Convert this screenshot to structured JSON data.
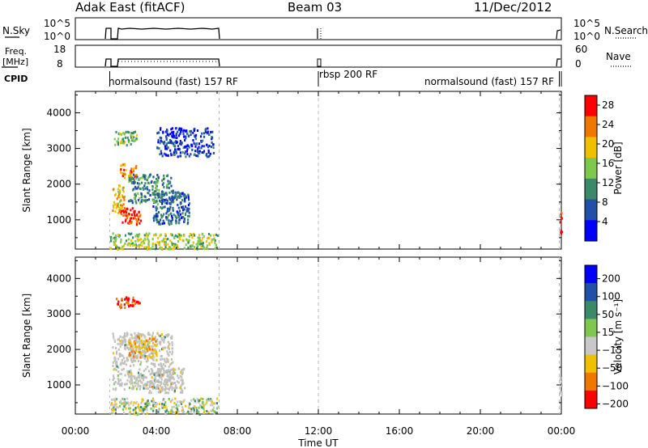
{
  "header": {
    "station": "Adak East (fitACF)",
    "beam": "Beam 03",
    "date": "11/Dec/2012"
  },
  "rows": {
    "nsky_label": "N.Sky",
    "nsearch_label": "N.Search",
    "freq_label_1": "Freq.",
    "freq_label_2": "[MHz]",
    "nave_label": "Nave",
    "cpid_label": "CPID",
    "nsky_ticks": [
      "10^5",
      "10^0"
    ],
    "nsearch_ticks": [
      "10^5",
      "10^0"
    ],
    "freq_ticks": [
      "18",
      "8"
    ],
    "nave_ticks": [
      "60",
      "0"
    ]
  },
  "cpid": [
    {
      "label": "normalsound (fast) 157 RF",
      "start": 1.7,
      "end": 7.1
    },
    {
      "label": "rbsp 200 RF",
      "start": 12.0,
      "end": 12.1
    },
    {
      "label": "normalsound (fast) 157 RF",
      "start": 23.9,
      "end": 24.0
    }
  ],
  "colors": {
    "power": [
      "#0000ff",
      "#2050a8",
      "#3a8a6a",
      "#7ec850",
      "#f0c000",
      "#f07800",
      "#ff0000"
    ],
    "velocity": [
      "#0000ff",
      "#2050a8",
      "#3a8a6a",
      "#7ec850",
      "#c8c8c8",
      "#f0c000",
      "#f07800",
      "#ff0000"
    ],
    "ground_scatter": "#c0c0bc",
    "grid_dash": "#bbbbbb"
  },
  "chart_data": [
    {
      "type": "heatmap",
      "name": "power",
      "xlabel": "Time UT",
      "ylabel": "Slant Range [km]",
      "xlim": [
        0,
        24
      ],
      "ylim": [
        180,
        4600
      ],
      "xticks": [
        "00:00",
        "04:00",
        "08:00",
        "12:00",
        "16:00",
        "20:00",
        "00:00"
      ],
      "yticks": [
        1000,
        2000,
        3000,
        4000
      ],
      "colorbar": {
        "label": "Power [dB]",
        "ticks": [
          4,
          8,
          12,
          16,
          20,
          24,
          28
        ],
        "range": [
          0,
          30
        ]
      },
      "regions": [
        {
          "t0": 2.2,
          "t1": 3.2,
          "r0": 900,
          "r1": 1400,
          "level": 27
        },
        {
          "t0": 1.8,
          "t1": 2.4,
          "r0": 1200,
          "r1": 2000,
          "level": 20
        },
        {
          "t0": 2.2,
          "t1": 3.0,
          "r0": 2100,
          "r1": 2600,
          "level": 22
        },
        {
          "t0": 2.6,
          "t1": 4.8,
          "r0": 1500,
          "r1": 2300,
          "level": 10
        },
        {
          "t0": 3.8,
          "t1": 5.6,
          "r0": 900,
          "r1": 1800,
          "level": 8
        },
        {
          "t0": 1.9,
          "t1": 3.0,
          "r0": 3100,
          "r1": 3500,
          "level": 14
        },
        {
          "t0": 4.0,
          "t1": 6.8,
          "r0": 2800,
          "r1": 3600,
          "level": 5
        },
        {
          "t0": 1.7,
          "t1": 7.0,
          "r0": 200,
          "r1": 650,
          "level": 16
        },
        {
          "t0": 23.9,
          "t1": 24.0,
          "r0": 600,
          "r1": 1300,
          "level": 28
        }
      ]
    },
    {
      "type": "heatmap",
      "name": "velocity",
      "xlabel": "Time UT",
      "ylabel": "Slant Range [km]",
      "xlim": [
        0,
        24
      ],
      "ylim": [
        180,
        4600
      ],
      "xticks": [
        "00:00",
        "04:00",
        "08:00",
        "12:00",
        "16:00",
        "20:00",
        "00:00"
      ],
      "yticks": [
        1000,
        2000,
        3000,
        4000
      ],
      "colorbar": {
        "label": "Velocity [m s⁻¹]",
        "ticks": [
          200,
          100,
          50,
          15,
          -15,
          -50,
          -100,
          -200
        ],
        "range": [
          -250,
          250
        ]
      },
      "regions": [
        {
          "t0": 1.8,
          "t1": 4.8,
          "r0": 900,
          "r1": 2500,
          "velocity": 0,
          "ground_scatter": true
        },
        {
          "t0": 3.6,
          "t1": 5.4,
          "r0": 800,
          "r1": 1500,
          "velocity": 0,
          "ground_scatter": true
        },
        {
          "t0": 2.6,
          "t1": 4.0,
          "r0": 1800,
          "r1": 2400,
          "velocity": -40
        },
        {
          "t0": 2.0,
          "t1": 3.2,
          "r0": 3200,
          "r1": 3500,
          "velocity": -120
        },
        {
          "t0": 1.7,
          "t1": 7.0,
          "r0": 200,
          "r1": 650,
          "velocity": 10
        },
        {
          "t0": 23.9,
          "t1": 24.0,
          "r0": 600,
          "r1": 1400,
          "velocity": 0,
          "ground_scatter": true
        }
      ]
    }
  ]
}
